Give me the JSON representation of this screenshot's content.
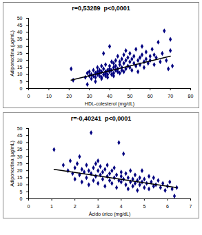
{
  "chart_data": [
    {
      "type": "scatter",
      "title": "r=0,53289  p<0,0001",
      "x_label": "HDL-colesterol (mg/dL)",
      "y_label": "Adiponectina (µg/mL)",
      "x": [
        21,
        22,
        28,
        29,
        29,
        30,
        30,
        31,
        31,
        32,
        32,
        33,
        33,
        33,
        34,
        34,
        34,
        35,
        35,
        35,
        36,
        36,
        36,
        36,
        37,
        37,
        37,
        38,
        38,
        38,
        38,
        39,
        39,
        39,
        40,
        40,
        40,
        40,
        41,
        41,
        41,
        42,
        42,
        42,
        42,
        43,
        43,
        43,
        44,
        44,
        44,
        45,
        45,
        45,
        46,
        46,
        46,
        47,
        47,
        47,
        48,
        48,
        48,
        49,
        49,
        50,
        50,
        50,
        51,
        51,
        52,
        52,
        53,
        53,
        54,
        54,
        55,
        55,
        56,
        56,
        57,
        57,
        58,
        58,
        59,
        60,
        60,
        61,
        62,
        62,
        63,
        64,
        65,
        66,
        67,
        68,
        69,
        70,
        70,
        71
      ],
      "values": [
        14,
        6,
        8,
        11,
        3,
        9,
        12,
        10,
        7,
        9,
        13,
        11,
        8,
        5,
        12,
        10,
        15,
        9,
        13,
        11,
        8,
        12,
        16,
        7,
        10,
        14,
        25,
        9,
        12,
        17,
        11,
        13,
        10,
        8,
        12,
        14,
        16,
        30,
        10,
        13,
        19,
        11,
        15,
        18,
        9,
        13,
        20,
        16,
        12,
        14,
        23,
        11,
        17,
        19,
        13,
        21,
        15,
        18,
        24,
        12,
        14,
        20,
        27,
        16,
        22,
        15,
        19,
        25,
        13,
        21,
        18,
        23,
        16,
        28,
        20,
        12,
        22,
        17,
        24,
        30,
        19,
        15,
        21,
        26,
        18,
        23,
        20,
        28,
        24,
        17,
        22,
        33,
        19,
        25,
        41,
        20,
        14,
        35,
        27,
        16
      ],
      "trendline": {
        "x": [
          21,
          70
        ],
        "values": [
          6,
          23
        ]
      },
      "color": "#000080",
      "marker": "diamond",
      "xlim": [
        0,
        80
      ],
      "xticks": [
        0,
        10,
        20,
        30,
        40,
        50,
        60,
        70,
        80
      ],
      "ylim": [
        0,
        50
      ],
      "yticks": [
        0,
        5,
        10,
        15,
        20,
        25,
        30,
        35,
        40,
        45,
        50
      ],
      "grid": false
    },
    {
      "type": "scatter",
      "title": "r=-0,40241  p<0,0001",
      "x_label": "Ácido úrico (mg/dL)",
      "y_label": "Adiponectina (µg/mL)",
      "x": [
        1.1,
        1.5,
        1.7,
        1.8,
        1.9,
        2.0,
        2.0,
        2.1,
        2.2,
        2.2,
        2.3,
        2.3,
        2.4,
        2.5,
        2.5,
        2.6,
        2.6,
        2.7,
        2.7,
        2.8,
        2.8,
        2.9,
        2.9,
        3.0,
        3.0,
        3.0,
        3.1,
        3.1,
        3.2,
        3.2,
        3.3,
        3.3,
        3.4,
        3.4,
        3.5,
        3.5,
        3.6,
        3.6,
        3.7,
        3.7,
        3.8,
        3.8,
        3.9,
        3.9,
        4.0,
        4.0,
        4.0,
        4.1,
        4.1,
        4.2,
        4.2,
        4.3,
        4.3,
        4.4,
        4.4,
        4.5,
        4.5,
        4.6,
        4.6,
        4.7,
        4.7,
        4.8,
        4.8,
        4.9,
        4.9,
        5.0,
        5.0,
        5.1,
        5.2,
        5.2,
        5.3,
        5.4,
        5.4,
        5.5,
        5.6,
        5.7,
        5.8,
        5.9,
        6.0,
        6.1,
        6.2,
        6.3,
        6.4
      ],
      "values": [
        35,
        24,
        20,
        27,
        18,
        22,
        14,
        25,
        17,
        30,
        21,
        12,
        19,
        24,
        15,
        20,
        10,
        47,
        18,
        22,
        13,
        25,
        16,
        20,
        11,
        27,
        17,
        23,
        14,
        19,
        21,
        9,
        16,
        24,
        13,
        18,
        20,
        11,
        15,
        22,
        17,
        8,
        13,
        40,
        19,
        12,
        16,
        14,
        32,
        10,
        18,
        15,
        7,
        12,
        20,
        14,
        9,
        17,
        11,
        13,
        6,
        15,
        10,
        12,
        20,
        8,
        14,
        11,
        16,
        7,
        12,
        9,
        15,
        10,
        13,
        8,
        11,
        6,
        9,
        12,
        7,
        2,
        8
      ],
      "trendline": {
        "x": [
          1.1,
          6.4
        ],
        "values": [
          21,
          8
        ]
      },
      "color": "#000080",
      "marker": "diamond",
      "xlim": [
        0,
        7
      ],
      "xticks": [
        0,
        1,
        2,
        3,
        4,
        5,
        6,
        7
      ],
      "ylim": [
        0,
        50
      ],
      "yticks": [
        0,
        5,
        10,
        15,
        20,
        25,
        30,
        35,
        40,
        45,
        50
      ],
      "grid": false
    }
  ]
}
